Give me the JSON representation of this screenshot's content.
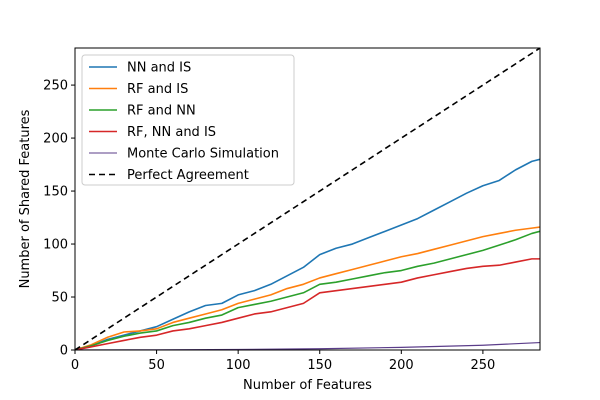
{
  "chart_data": {
    "type": "line",
    "xlabel": "Number of Features",
    "ylabel": "Number of Shared Features",
    "xlim": [
      0,
      285
    ],
    "ylim": [
      0,
      285
    ],
    "xticks": [
      0,
      50,
      100,
      150,
      200,
      250
    ],
    "yticks": [
      0,
      50,
      100,
      150,
      200,
      250
    ],
    "grid": false,
    "legend_position": "top-left",
    "series": [
      {
        "name": "NN and IS",
        "color": "#1f77b4",
        "style": "solid",
        "points": [
          [
            0,
            0
          ],
          [
            10,
            4
          ],
          [
            20,
            10
          ],
          [
            30,
            14
          ],
          [
            40,
            18
          ],
          [
            50,
            22
          ],
          [
            60,
            29
          ],
          [
            70,
            36
          ],
          [
            80,
            42
          ],
          [
            90,
            44
          ],
          [
            100,
            52
          ],
          [
            110,
            56
          ],
          [
            120,
            62
          ],
          [
            130,
            70
          ],
          [
            140,
            78
          ],
          [
            150,
            90
          ],
          [
            160,
            96
          ],
          [
            170,
            100
          ],
          [
            180,
            106
          ],
          [
            190,
            112
          ],
          [
            200,
            118
          ],
          [
            210,
            124
          ],
          [
            220,
            132
          ],
          [
            230,
            140
          ],
          [
            240,
            148
          ],
          [
            250,
            155
          ],
          [
            260,
            160
          ],
          [
            270,
            170
          ],
          [
            280,
            178
          ],
          [
            285,
            180
          ]
        ]
      },
      {
        "name": "RF and IS",
        "color": "#ff7f0e",
        "style": "solid",
        "points": [
          [
            0,
            0
          ],
          [
            10,
            5
          ],
          [
            20,
            12
          ],
          [
            30,
            17
          ],
          [
            40,
            18
          ],
          [
            50,
            20
          ],
          [
            60,
            26
          ],
          [
            70,
            30
          ],
          [
            80,
            34
          ],
          [
            90,
            38
          ],
          [
            100,
            44
          ],
          [
            110,
            48
          ],
          [
            120,
            52
          ],
          [
            130,
            58
          ],
          [
            140,
            62
          ],
          [
            150,
            68
          ],
          [
            160,
            72
          ],
          [
            170,
            76
          ],
          [
            180,
            80
          ],
          [
            190,
            84
          ],
          [
            200,
            88
          ],
          [
            210,
            91
          ],
          [
            220,
            95
          ],
          [
            230,
            99
          ],
          [
            240,
            103
          ],
          [
            250,
            107
          ],
          [
            260,
            110
          ],
          [
            270,
            113
          ],
          [
            280,
            115
          ],
          [
            285,
            116
          ]
        ]
      },
      {
        "name": "RF and NN",
        "color": "#2ca02c",
        "style": "solid",
        "points": [
          [
            0,
            0
          ],
          [
            10,
            4
          ],
          [
            20,
            9
          ],
          [
            30,
            13
          ],
          [
            40,
            16
          ],
          [
            50,
            18
          ],
          [
            60,
            23
          ],
          [
            70,
            26
          ],
          [
            80,
            30
          ],
          [
            90,
            33
          ],
          [
            100,
            40
          ],
          [
            110,
            43
          ],
          [
            120,
            46
          ],
          [
            130,
            50
          ],
          [
            140,
            54
          ],
          [
            150,
            62
          ],
          [
            160,
            64
          ],
          [
            170,
            67
          ],
          [
            180,
            70
          ],
          [
            190,
            73
          ],
          [
            200,
            75
          ],
          [
            210,
            79
          ],
          [
            220,
            82
          ],
          [
            230,
            86
          ],
          [
            240,
            90
          ],
          [
            250,
            94
          ],
          [
            260,
            99
          ],
          [
            270,
            104
          ],
          [
            280,
            110
          ],
          [
            285,
            112
          ]
        ]
      },
      {
        "name": "RF, NN and IS",
        "color": "#d62728",
        "style": "solid",
        "points": [
          [
            0,
            0
          ],
          [
            10,
            3
          ],
          [
            20,
            6
          ],
          [
            30,
            9
          ],
          [
            40,
            12
          ],
          [
            50,
            14
          ],
          [
            60,
            18
          ],
          [
            70,
            20
          ],
          [
            80,
            23
          ],
          [
            90,
            26
          ],
          [
            100,
            30
          ],
          [
            110,
            34
          ],
          [
            120,
            36
          ],
          [
            130,
            40
          ],
          [
            140,
            44
          ],
          [
            150,
            54
          ],
          [
            160,
            56
          ],
          [
            170,
            58
          ],
          [
            180,
            60
          ],
          [
            190,
            62
          ],
          [
            200,
            64
          ],
          [
            210,
            68
          ],
          [
            220,
            71
          ],
          [
            230,
            74
          ],
          [
            240,
            77
          ],
          [
            250,
            79
          ],
          [
            260,
            80
          ],
          [
            270,
            83
          ],
          [
            280,
            86
          ],
          [
            285,
            86
          ]
        ]
      },
      {
        "name": "Monte Carlo Simulation",
        "color": "#5b3d8a",
        "style": "thin",
        "points": [
          [
            0,
            0
          ],
          [
            50,
            0.2
          ],
          [
            100,
            0.5
          ],
          [
            150,
            1.2
          ],
          [
            200,
            2.5
          ],
          [
            250,
            4.5
          ],
          [
            285,
            7
          ]
        ]
      },
      {
        "name": "Perfect Agreement",
        "color": "#000000",
        "style": "dashed",
        "points": [
          [
            0,
            0
          ],
          [
            285,
            285
          ]
        ]
      }
    ]
  }
}
